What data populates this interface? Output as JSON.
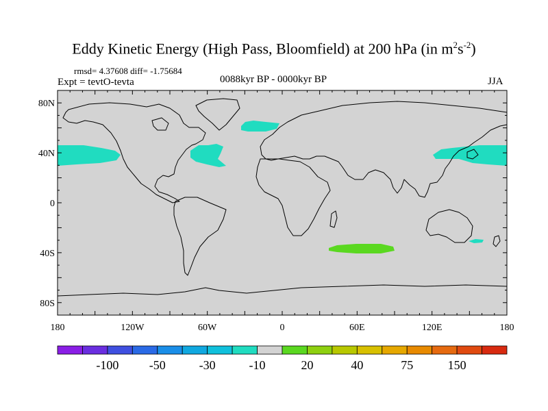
{
  "title": {
    "main": "Eddy Kinetic Energy (High Pass, Bloomfield) at 200 hPa (in m",
    "sup1": "2",
    "mid": "s",
    "sup2": "-2",
    "end": ")"
  },
  "stats": "rmsd= 4.37608 diff= -1.75684",
  "experiment": "Expt = tevtO-tevta",
  "period": "0088kyr BP - 0000kyr BP",
  "season": "JJA",
  "map": {
    "projection": "cylindrical equidistant",
    "lon_range": [
      -180,
      180
    ],
    "lat_range": [
      -90,
      90
    ],
    "background_color": "#d3d3d3",
    "coastline_color": "#000000",
    "lat_ticks": [
      "80N",
      "40N",
      "0",
      "40S",
      "80S"
    ],
    "lon_ticks": [
      "180",
      "120W",
      "60W",
      "0",
      "60E",
      "120E",
      "180"
    ]
  },
  "anomaly_regions": [
    {
      "name": "north-pacific-east",
      "category": "-20 to -10",
      "color": "#20dcc0"
    },
    {
      "name": "north-atlantic-west",
      "category": "-20 to -10",
      "color": "#20dcc0"
    },
    {
      "name": "north-atlantic-south-of-greenland",
      "category": "-20 to -10",
      "color": "#20dcc0"
    },
    {
      "name": "north-pacific-west",
      "category": "-20 to -10",
      "color": "#20dcc0"
    },
    {
      "name": "southern-indian-ocean",
      "category": "10 to 20",
      "color": "#5ad820"
    },
    {
      "name": "tasman-sea",
      "category": "-20 to -10",
      "color": "#20dcc0"
    }
  ],
  "colorbar": {
    "colors": [
      "#8a1ee6",
      "#6a2ee0",
      "#3f4fe0",
      "#2a6ae6",
      "#1a8ee8",
      "#10a8e0",
      "#10c0dc",
      "#20dcc0",
      "#d3d3d3",
      "#5ad820",
      "#8ed010",
      "#b8c800",
      "#d8c000",
      "#e6a800",
      "#e88a00",
      "#e66a10",
      "#e04a10",
      "#d82a10"
    ],
    "labels": [
      {
        "text": "-100",
        "after_box": 2
      },
      {
        "text": "-50",
        "after_box": 4
      },
      {
        "text": "-30",
        "after_box": 6
      },
      {
        "text": "-10",
        "after_box": 8
      },
      {
        "text": "20",
        "after_box": 10
      },
      {
        "text": "40",
        "after_box": 12
      },
      {
        "text": "75",
        "after_box": 14
      },
      {
        "text": "150",
        "after_box": 16
      }
    ]
  }
}
